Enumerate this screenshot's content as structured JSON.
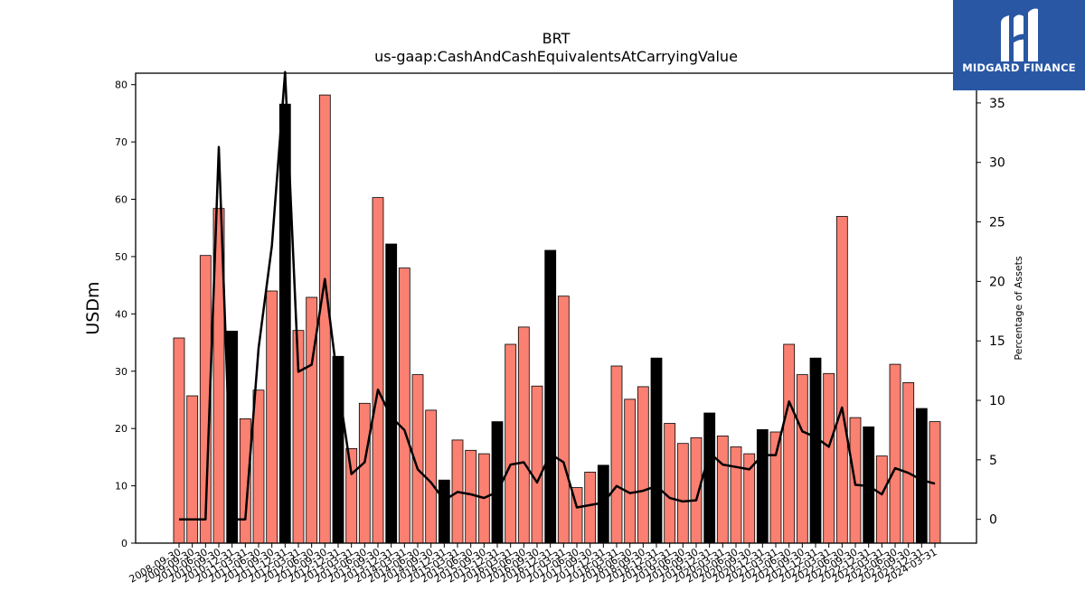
{
  "chart_data": {
    "type": "bar",
    "title": "BRT",
    "subtitle": "us-gaap:CashAndCashEquivalentsAtCarryingValue",
    "ylabel": "USDm",
    "y2label": "Percentage of Assets",
    "ylim": [
      0,
      82
    ],
    "y2lim": [
      -2,
      37.5
    ],
    "yticks": [
      0,
      10,
      20,
      30,
      40,
      50,
      60,
      70,
      80
    ],
    "y2ticks": [
      0,
      5,
      10,
      15,
      20,
      25,
      30,
      35
    ],
    "grid": false,
    "colors": {
      "bar": "#fa8072",
      "highlight": "#000000",
      "line": "#000000"
    },
    "categories": [
      "2008-09-30",
      "2009-09-30",
      "2010-06-30",
      "2010-09-30",
      "2010-12-31",
      "2011-03-31",
      "2011-06-30",
      "2011-09-30",
      "2011-12-31",
      "2012-03-31",
      "2012-06-30",
      "2012-09-30",
      "2012-12-31",
      "2013-03-31",
      "2013-06-30",
      "2013-09-30",
      "2013-12-31",
      "2014-03-31",
      "2014-06-30",
      "2014-09-30",
      "2014-12-31",
      "2015-03-31",
      "2015-06-30",
      "2015-09-30",
      "2015-12-31",
      "2016-03-31",
      "2016-06-30",
      "2016-09-30",
      "2016-12-31",
      "2017-03-31",
      "2017-06-30",
      "2017-09-30",
      "2017-12-31",
      "2018-03-31",
      "2018-06-30",
      "2018-09-30",
      "2018-12-31",
      "2019-03-31",
      "2019-06-30",
      "2019-09-30",
      "2019-12-31",
      "2020-03-31",
      "2020-06-30",
      "2020-09-30",
      "2020-12-31",
      "2021-03-31",
      "2021-06-30",
      "2021-09-30",
      "2021-12-31",
      "2022-03-31",
      "2022-06-30",
      "2022-09-30",
      "2022-12-31",
      "2023-03-31",
      "2023-06-30",
      "2023-09-30",
      "2023-12-31",
      "2024-03-31"
    ],
    "series": [
      {
        "type": "bar",
        "values": [
          35.8,
          25.7,
          50.2,
          58.4,
          37.0,
          21.7,
          26.7,
          44.0,
          76.6,
          37.1,
          42.9,
          78.2,
          32.6,
          16.5,
          24.4,
          60.3,
          52.2,
          48.0,
          29.4,
          23.2,
          11.0,
          18.0,
          16.2,
          15.6,
          21.2,
          34.7,
          37.7,
          27.4,
          51.1,
          43.1,
          9.7,
          12.4,
          13.6,
          30.9,
          25.1,
          27.3,
          32.3,
          20.9,
          17.4,
          18.4,
          22.7,
          18.7,
          16.8,
          15.6,
          19.8,
          19.4,
          34.7,
          29.4,
          32.3,
          29.6,
          57.0,
          21.9,
          20.3,
          15.2,
          31.2,
          28.0,
          23.5,
          21.2
        ],
        "highlight": [
          false,
          false,
          false,
          false,
          true,
          false,
          false,
          false,
          true,
          false,
          false,
          false,
          true,
          false,
          false,
          false,
          true,
          false,
          false,
          false,
          true,
          false,
          false,
          false,
          true,
          false,
          false,
          false,
          true,
          false,
          false,
          false,
          true,
          false,
          false,
          false,
          true,
          false,
          false,
          false,
          true,
          false,
          false,
          false,
          true,
          false,
          false,
          false,
          true,
          false,
          false,
          false,
          true,
          false,
          false,
          false,
          true,
          false
        ]
      },
      {
        "type": "line",
        "axis": "right",
        "values": [
          0,
          0,
          0,
          31.3,
          0,
          0,
          14.4,
          23.0,
          37.6,
          12.4,
          13.0,
          20.2,
          11.3,
          3.8,
          4.8,
          10.9,
          8.6,
          7.5,
          4.2,
          3.1,
          1.6,
          2.3,
          2.1,
          1.8,
          2.3,
          4.6,
          4.8,
          3.1,
          5.5,
          4.8,
          1.0,
          1.2,
          1.4,
          2.8,
          2.2,
          2.4,
          2.8,
          1.8,
          1.5,
          1.6,
          5.6,
          4.6,
          4.4,
          4.2,
          5.4,
          5.4,
          9.9,
          7.4,
          6.9,
          6.1,
          9.4,
          2.9,
          2.8,
          2.1,
          4.3,
          3.9,
          3.3,
          3.0
        ]
      }
    ]
  },
  "logo": {
    "name": "MIDGARD FINANCE"
  }
}
